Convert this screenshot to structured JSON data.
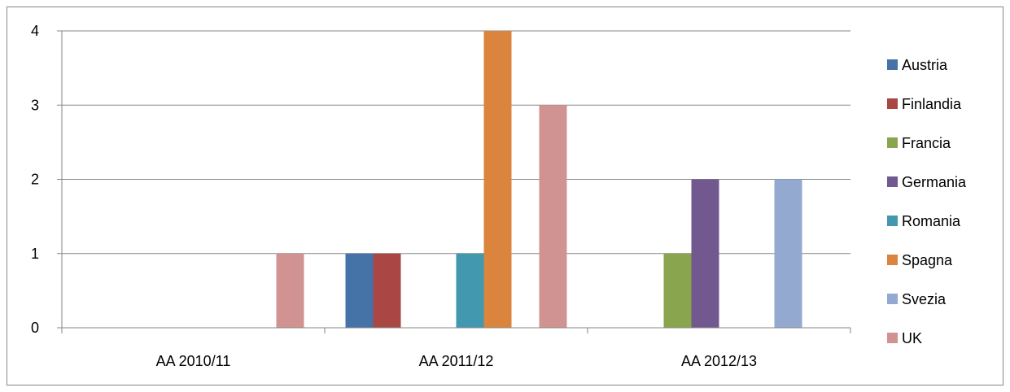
{
  "chart_data": {
    "type": "bar",
    "categories": [
      "AA 2010/11",
      "AA 2011/12",
      "AA 2012/13"
    ],
    "series": [
      {
        "name": "Austria",
        "color": "#4572A7",
        "values": [
          0,
          1,
          0
        ]
      },
      {
        "name": "Finlandia",
        "color": "#AA4643",
        "values": [
          0,
          1,
          0
        ]
      },
      {
        "name": "Francia",
        "color": "#89A54E",
        "values": [
          0,
          0,
          1
        ]
      },
      {
        "name": "Germania",
        "color": "#71588F",
        "values": [
          0,
          0,
          2
        ]
      },
      {
        "name": "Romania",
        "color": "#4198AF",
        "values": [
          0,
          1,
          0
        ]
      },
      {
        "name": "Spagna",
        "color": "#DB843D",
        "values": [
          0,
          4,
          0
        ]
      },
      {
        "name": "Svezia",
        "color": "#93A9CF",
        "values": [
          0,
          0,
          2
        ]
      },
      {
        "name": "UK",
        "color": "#D19392",
        "values": [
          1,
          3,
          0
        ]
      }
    ],
    "ylim": [
      0,
      4
    ],
    "yticks": [
      "0",
      "1",
      "2",
      "3",
      "4"
    ],
    "grid": true,
    "legend_position": "right"
  }
}
